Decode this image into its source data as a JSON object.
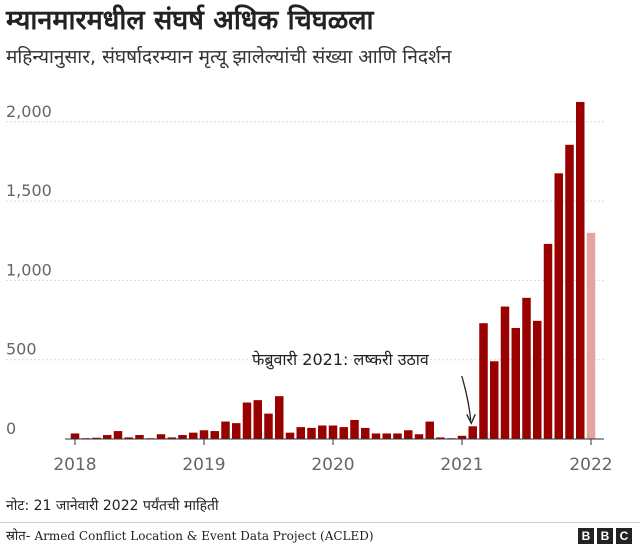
{
  "header": {
    "title": "म्यानमारमधील संघर्ष अधिक चिघळला",
    "subtitle": "महिन्यानुसार, संघर्षादरम्यान मृत्यू झालेल्यांची संख्या आणि निदर्शन"
  },
  "chart_data": {
    "type": "bar",
    "title": "म्यानमारमधील संघर्ष अधिक चिघळला",
    "subtitle": "महिन्यानुसार, संघर्षादरम्यान मृत्यू झालेल्यांची संख्या आणि निदर्शन",
    "x_start": "2018-01",
    "x_tick_labels": [
      "2018",
      "2019",
      "2020",
      "2021",
      "2022"
    ],
    "y_tick_labels": [
      "0",
      "500",
      "1,000",
      "1,500",
      "2,000"
    ],
    "y_ticks": [
      0,
      500,
      1000,
      1500,
      2000
    ],
    "ylim": [
      0,
      2150
    ],
    "grid": true,
    "bar_color": "#990000",
    "partial_bar_color": "#e6a3a3",
    "values": [
      35,
      5,
      8,
      25,
      50,
      10,
      25,
      5,
      30,
      10,
      25,
      40,
      55,
      50,
      110,
      100,
      230,
      245,
      160,
      270,
      40,
      75,
      70,
      85,
      85,
      75,
      120,
      70,
      35,
      35,
      35,
      55,
      30,
      110,
      10,
      5,
      20,
      80,
      730,
      490,
      835,
      700,
      890,
      745,
      1230,
      1675,
      1855,
      2125,
      1300
    ],
    "partial_last": true,
    "annotation": {
      "text": "फेब्रुवारी 2021: लष्करी उठाव",
      "target_index": 37
    }
  },
  "note": "नोट: 21 जानेवारी 2022 पर्यंतची माहिती",
  "source": {
    "label": "स्रोत-",
    "text": "Armed Conflict Location & Event Data Project   (ACLED)"
  },
  "logo": [
    "B",
    "B",
    "C"
  ]
}
